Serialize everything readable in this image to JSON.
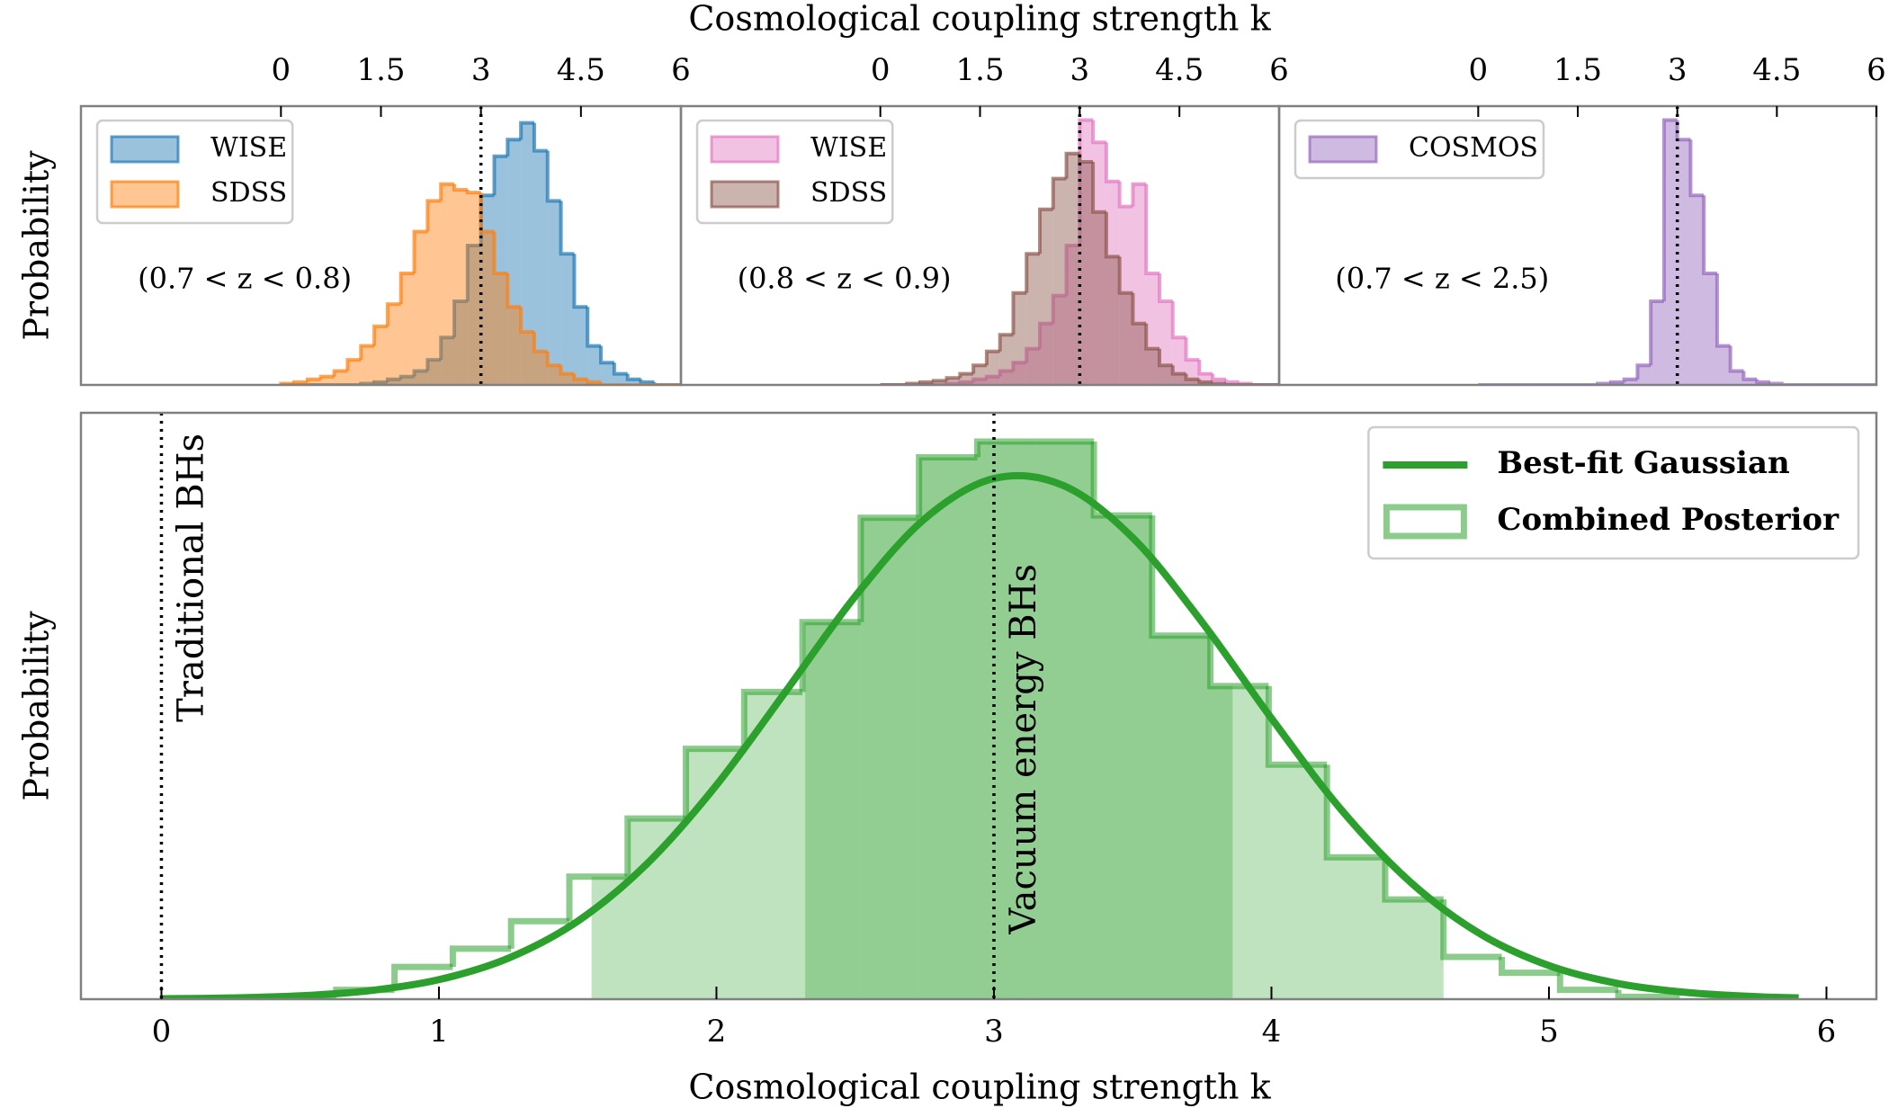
{
  "chart_data": [
    {
      "type": "histogram",
      "xlabel": "Cosmological coupling strength k",
      "ylabel": "Probability",
      "annotation": "(0.7 < z < 0.8)",
      "vline": 3,
      "xlim": [
        -3,
        6
      ],
      "xticks": [
        0,
        1.5,
        3,
        4.5,
        6
      ],
      "ylim": [
        0,
        1
      ],
      "legend": "upper left",
      "bins": [
        0,
        0.2,
        0.4,
        0.6,
        0.8,
        1,
        1.2,
        1.4,
        1.6,
        1.8,
        2,
        2.2,
        2.4,
        2.6,
        2.8,
        3,
        3.2,
        3.4,
        3.6,
        3.8,
        4,
        4.2,
        4.4,
        4.6,
        4.8,
        5,
        5.2,
        5.4,
        5.6,
        5.8,
        6
      ],
      "series": [
        {
          "name": "WISE",
          "color": "#1f77b4",
          "values": [
            0,
            0,
            0,
            0,
            0,
            0,
            0.005,
            0.01,
            0.02,
            0.03,
            0.05,
            0.09,
            0.17,
            0.3,
            0.5,
            0.68,
            0.82,
            0.88,
            0.94,
            0.84,
            0.66,
            0.47,
            0.28,
            0.14,
            0.08,
            0.04,
            0.02,
            0.01,
            0,
            0
          ]
        },
        {
          "name": "SDSS",
          "color": "#ff7f0e",
          "values": [
            0.005,
            0.01,
            0.02,
            0.03,
            0.05,
            0.09,
            0.14,
            0.21,
            0.29,
            0.4,
            0.55,
            0.66,
            0.72,
            0.7,
            0.69,
            0.55,
            0.4,
            0.28,
            0.19,
            0.12,
            0.07,
            0.04,
            0.02,
            0.01,
            0,
            0,
            0,
            0,
            0,
            0
          ]
        }
      ]
    },
    {
      "type": "histogram",
      "annotation": "(0.8 < z < 0.9)",
      "vline": 3,
      "xlim": [
        -3,
        6
      ],
      "xticks": [
        0,
        1.5,
        3,
        4.5,
        6
      ],
      "ylim": [
        0,
        1
      ],
      "legend": "upper left",
      "bins": [
        0,
        0.2,
        0.4,
        0.6,
        0.8,
        1,
        1.2,
        1.4,
        1.6,
        1.8,
        2,
        2.2,
        2.4,
        2.6,
        2.8,
        3,
        3.2,
        3.4,
        3.6,
        3.8,
        4,
        4.2,
        4.4,
        4.6,
        4.8,
        5,
        5.2,
        5.4,
        5.6,
        5.8,
        6
      ],
      "series": [
        {
          "name": "WISE",
          "color": "#e377c2",
          "values": [
            0,
            0,
            0,
            0,
            0,
            0.005,
            0.01,
            0.02,
            0.03,
            0.05,
            0.08,
            0.13,
            0.22,
            0.32,
            0.5,
            0.95,
            0.87,
            0.73,
            0.64,
            0.72,
            0.4,
            0.3,
            0.17,
            0.09,
            0.04,
            0.02,
            0.01,
            0.005,
            0,
            0
          ]
        },
        {
          "name": "SDSS",
          "color": "#8c564b",
          "values": [
            0,
            0,
            0.005,
            0.01,
            0.015,
            0.025,
            0.04,
            0.07,
            0.12,
            0.18,
            0.33,
            0.47,
            0.63,
            0.74,
            0.83,
            0.8,
            0.62,
            0.46,
            0.33,
            0.22,
            0.13,
            0.07,
            0.04,
            0.02,
            0.01,
            0.005,
            0,
            0,
            0,
            0
          ]
        }
      ]
    },
    {
      "type": "histogram",
      "annotation": "(0.7 < z < 2.5)",
      "vline": 3,
      "xlim": [
        -3,
        6
      ],
      "xticks": [
        0,
        1.5,
        3,
        4.5,
        6
      ],
      "ylim": [
        0,
        1
      ],
      "legend": "upper left",
      "bins": [
        0,
        0.2,
        0.4,
        0.6,
        0.8,
        1,
        1.2,
        1.4,
        1.6,
        1.8,
        2,
        2.2,
        2.4,
        2.6,
        2.8,
        3,
        3.2,
        3.4,
        3.6,
        3.8,
        4,
        4.2,
        4.4,
        4.6,
        4.8,
        5,
        5.2,
        5.4,
        5.6,
        5.8,
        6
      ],
      "series": [
        {
          "name": "COSMOS",
          "color": "#9467bd",
          "values": [
            0,
            0,
            0,
            0,
            0,
            0,
            0,
            0,
            0,
            0.005,
            0.01,
            0.02,
            0.07,
            0.3,
            0.95,
            0.88,
            0.68,
            0.4,
            0.14,
            0.05,
            0.02,
            0.01,
            0.005,
            0,
            0,
            0,
            0,
            0,
            0,
            0
          ]
        }
      ]
    },
    {
      "type": "histogram",
      "xlabel": "Cosmological coupling strength k",
      "ylabel": "Probability",
      "xlim": [
        -0.29,
        6.18
      ],
      "xticks": [
        0,
        1,
        2,
        3,
        4,
        5,
        6
      ],
      "ylim": [
        0,
        1
      ],
      "legend": "upper right",
      "outline_only": true,
      "bins": [
        0.42,
        0.63,
        0.84,
        1.05,
        1.26,
        1.47,
        1.68,
        1.89,
        2.1,
        2.31,
        2.52,
        2.73,
        2.94,
        3.15,
        3.36,
        3.57,
        3.78,
        3.99,
        4.2,
        4.41,
        4.62,
        4.83,
        5.04,
        5.25,
        5.46
      ],
      "series": [
        {
          "name": "Combined Posterior",
          "color": "#2ca02c",
          "values": [
            0.004,
            0.016,
            0.055,
            0.086,
            0.133,
            0.209,
            0.308,
            0.427,
            0.524,
            0.643,
            0.821,
            0.924,
            0.951,
            0.951,
            0.825,
            0.62,
            0.534,
            0.4,
            0.242,
            0.17,
            0.072,
            0.045,
            0.016,
            0.004
          ]
        }
      ],
      "shaded_ranges": [
        [
          1.55,
          4.62
        ],
        [
          2.32,
          3.86
        ]
      ],
      "curve": {
        "name": "Best-fit Gaussian",
        "color": "#2ca02c",
        "x": [
          0,
          0.25,
          0.5,
          0.75,
          1,
          1.25,
          1.5,
          1.75,
          2,
          2.25,
          2.5,
          2.75,
          3,
          3.25,
          3.5,
          3.75,
          4,
          4.25,
          4.5,
          4.75,
          5,
          5.25,
          5.5,
          5.75,
          5.9
        ],
        "values": [
          0.0007,
          0.0021,
          0.0057,
          0.0145,
          0.0333,
          0.0698,
          0.133,
          0.231,
          0.365,
          0.525,
          0.687,
          0.819,
          0.888,
          0.876,
          0.787,
          0.643,
          0.479,
          0.324,
          0.2,
          0.112,
          0.0573,
          0.0266,
          0.0113,
          0.0043,
          0.0023
        ]
      },
      "annotations": [
        {
          "x": 0,
          "text": "Traditional BHs"
        },
        {
          "x": 3,
          "text": "Vacuum energy BHs"
        }
      ]
    }
  ]
}
